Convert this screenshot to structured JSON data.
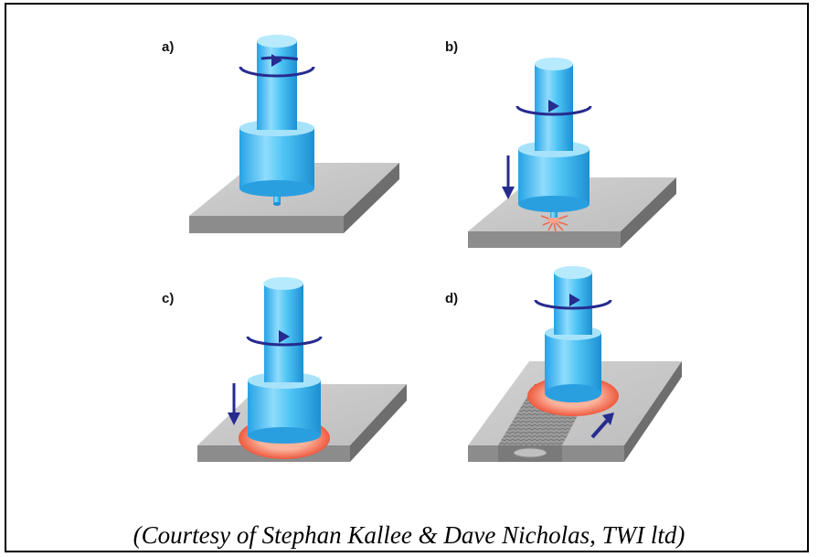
{
  "panels": [
    {
      "label": "a)"
    },
    {
      "label": "b)"
    },
    {
      "label": "c)"
    },
    {
      "label": "d)"
    }
  ],
  "caption": "(Courtesy of Stephan Kallee & Dave Nicholas, TWI ltd)",
  "colors": {
    "tool": "#39b4ee",
    "tool_light": "#9fe0fb",
    "tool_dark": "#1c8fd0",
    "plate_top": "#c6c6c6",
    "plate_side": "#8a8a8a",
    "arrow": "#262b8e",
    "heat": "#f06a4f"
  }
}
